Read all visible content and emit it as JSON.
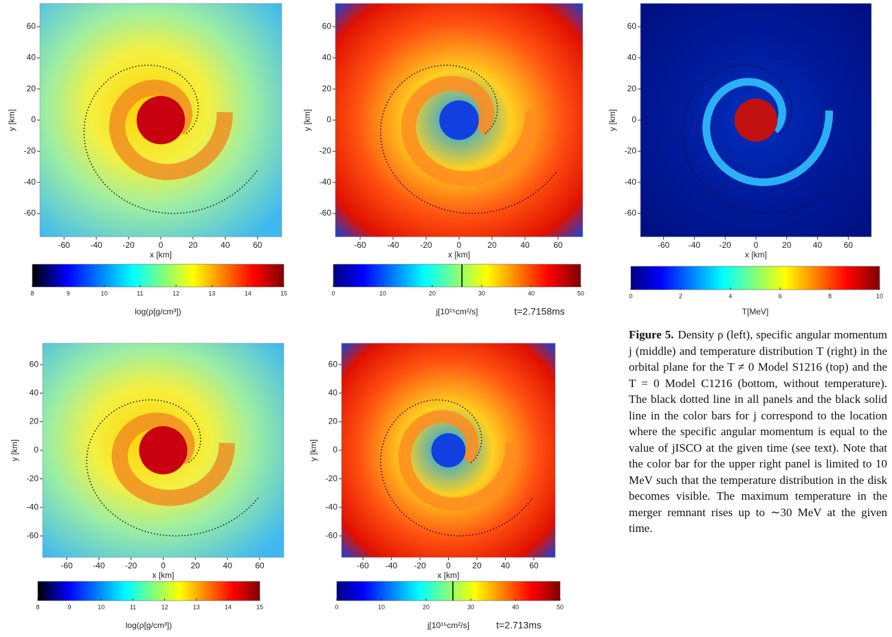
{
  "panels": [
    {
      "x_label": "x [km]",
      "y_label": "y [km]",
      "xlim": [
        -75,
        75
      ],
      "ylim": [
        -75,
        75
      ],
      "xticks": [
        -60,
        -40,
        -20,
        0,
        20,
        40,
        60
      ],
      "yticks": [
        60,
        40,
        20,
        0,
        -20,
        -40,
        -60
      ],
      "colorbar": {
        "label": "log(ρ[g/cm³])",
        "range": [
          8,
          15
        ],
        "ticks": [
          8,
          9,
          10,
          11,
          12,
          13,
          14,
          15
        ]
      }
    },
    {
      "x_label": "x [km]",
      "y_label": "y [km]",
      "xlim": [
        -75,
        75
      ],
      "ylim": [
        -75,
        75
      ],
      "xticks": [
        -60,
        -40,
        -20,
        0,
        20,
        40,
        60
      ],
      "yticks": [
        60,
        40,
        20,
        0,
        -20,
        -40,
        -60
      ],
      "colorbar": {
        "label": "j[10¹⁵cm²/s]",
        "range": [
          0,
          50
        ],
        "ticks": [
          0,
          10,
          20,
          30,
          40,
          50
        ],
        "marker": 26
      },
      "time": "t=2.7158ms"
    },
    {
      "x_label": "x [km]",
      "y_label": "y [km]",
      "xlim": [
        -75,
        75
      ],
      "ylim": [
        -75,
        75
      ],
      "xticks": [
        -60,
        -40,
        -20,
        0,
        20,
        40,
        60
      ],
      "yticks": [
        60,
        40,
        20,
        0,
        -20,
        -40,
        -60
      ],
      "colorbar": {
        "label": "T[MeV]",
        "range": [
          0,
          10
        ],
        "ticks": [
          0,
          2,
          4,
          6,
          8,
          10
        ]
      }
    },
    {
      "x_label": "x [km]",
      "y_label": "y [km]",
      "xlim": [
        -75,
        75
      ],
      "ylim": [
        -75,
        75
      ],
      "xticks": [
        -60,
        -40,
        -20,
        0,
        20,
        40,
        60
      ],
      "yticks": [
        60,
        40,
        20,
        0,
        -20,
        -40,
        -60
      ],
      "colorbar": {
        "label": "log(ρ[g/cm³])",
        "range": [
          8,
          15
        ],
        "ticks": [
          8,
          9,
          10,
          11,
          12,
          13,
          14,
          15
        ]
      }
    },
    {
      "x_label": "x [km]",
      "y_label": "y [km]",
      "xlim": [
        -75,
        75
      ],
      "ylim": [
        -75,
        75
      ],
      "xticks": [
        -60,
        -40,
        -20,
        0,
        20,
        40,
        60
      ],
      "yticks": [
        60,
        40,
        20,
        0,
        -20,
        -40,
        -60
      ],
      "colorbar": {
        "label": "j[10¹⁵cm²/s]",
        "range": [
          0,
          50
        ],
        "ticks": [
          0,
          10,
          20,
          30,
          40,
          50
        ],
        "marker": 26
      },
      "time": "t=2.713ms"
    }
  ],
  "caption": {
    "label": "Figure 5.",
    "text": "Density ρ (left), specific angular momentum j (middle) and temperature distribution T (right) in the orbital plane for the T ≠ 0 Model S1216 (top) and the T = 0 Model C1216 (bottom, without temperature). The black dotted line in all panels and the black solid line in the color bars for j correspond to the location where the specific angular momentum is equal to the value of jISCO at the given time (see text). Note that the color bar for the upper right panel is limited to 10 MeV such that the temperature distribution in the disk becomes visible. The maximum temperature in the merger remnant rises up to ∼30 MeV at the given time."
  }
}
